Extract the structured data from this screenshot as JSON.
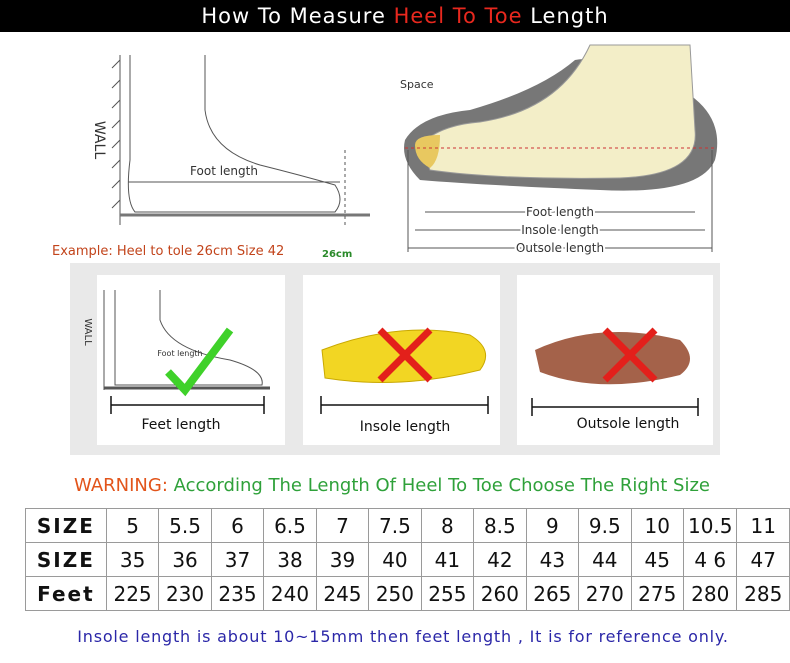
{
  "header": {
    "title_start": "How To Measure",
    "title_highlight": "Heel To Toe",
    "title_end": "Length"
  },
  "left_diagram": {
    "wall": "WALL",
    "foot_length": "Foot length",
    "example": "Example: Heel to tole 26cm Size 42",
    "mark": "26cm"
  },
  "right_diagram": {
    "space": "Space",
    "foot_length": "Foot length",
    "insole_length": "Insole length",
    "outsole_length": "Outsole length"
  },
  "panels": [
    {
      "wall": "WALL",
      "inner": "Foot length",
      "label": "Feet length"
    },
    {
      "label": "Insole length"
    },
    {
      "label": "Outsole length"
    }
  ],
  "warning": {
    "prefix": "WARNING:",
    "text": "According The Length Of Heel To Toe Choose The Right Size"
  },
  "table": {
    "rows": [
      [
        "SIZE",
        "5",
        "5.5",
        "6",
        "6.5",
        "7",
        "7.5",
        "8",
        "8.5",
        "9",
        "9.5",
        "10",
        "10.5",
        "11"
      ],
      [
        "SIZE",
        "35",
        "36",
        "37",
        "38",
        "39",
        "40",
        "41",
        "42",
        "43",
        "44",
        "45",
        "4 6",
        "47"
      ],
      [
        "Feet",
        "225",
        "230",
        "235",
        "240",
        "245",
        "250",
        "255",
        "260",
        "265",
        "270",
        "275",
        "280",
        "285"
      ]
    ]
  },
  "footer": {
    "note": "Insole length is about 10~15mm then feet length , It is for reference only."
  }
}
